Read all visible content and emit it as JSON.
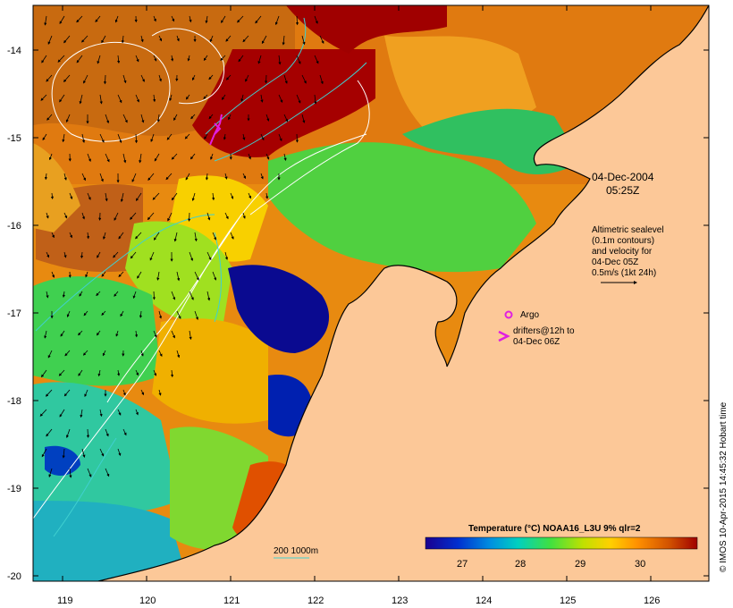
{
  "map": {
    "x_ticks": [
      "119",
      "120",
      "121",
      "122",
      "123",
      "124",
      "125",
      "126"
    ],
    "y_ticks": [
      "-14",
      "-15",
      "-16",
      "-17",
      "-18",
      "-19",
      "-20"
    ],
    "land_color": "#fcc898",
    "coast_color": "#000000",
    "contour_color_white": "#ffffff",
    "contour_color_cyan": "#40d0d0",
    "arrow_color": "#000000"
  },
  "annotations": {
    "date": "04-Dec-2004",
    "time": "05:25Z",
    "altimetry_lines": [
      "Altimetric sealevel",
      "(0.1m contours)",
      "and velocity for",
      "04-Dec 05Z",
      "0.5m/s (1kt 24h)"
    ],
    "argo_label": "Argo",
    "drifter_lines": [
      "drifters@12h to",
      "04-Dec 06Z"
    ],
    "depth_label": "200  1000m",
    "marker_color": "#e020e0"
  },
  "colorbar": {
    "title": "Temperature (°C) NOAA16_L3U 9% qlr=2",
    "ticks": [
      "27",
      "28",
      "29",
      "30"
    ],
    "colors": [
      "#1a0090",
      "#0030d0",
      "#0090e0",
      "#00d0c0",
      "#40e040",
      "#c0e000",
      "#ffd000",
      "#ff9000",
      "#d05000",
      "#a00000"
    ]
  },
  "credit": "© IMOS 10-Apr-2015 14:45:32 Hobart time"
}
